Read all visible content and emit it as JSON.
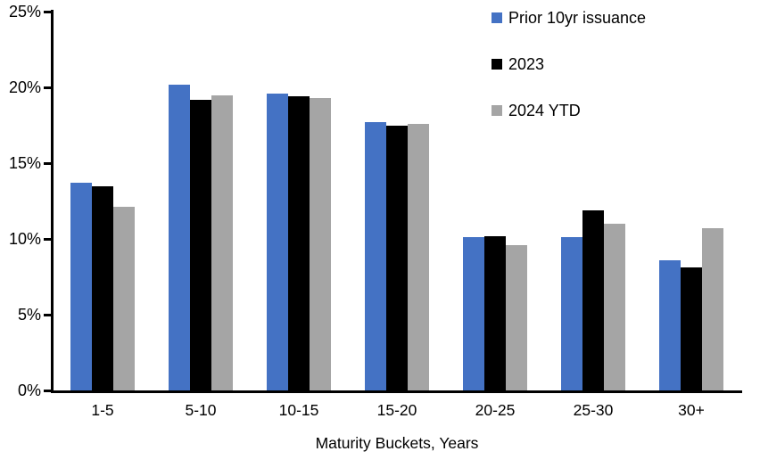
{
  "chart_data": {
    "type": "bar",
    "title": "",
    "xlabel": "Maturity Buckets, Years",
    "ylabel": "",
    "ylim": [
      0,
      25
    ],
    "y_ticks": [
      0,
      5,
      10,
      15,
      20,
      25
    ],
    "y_tick_labels": [
      "0%",
      "5%",
      "10%",
      "15%",
      "20%",
      "25%"
    ],
    "categories": [
      "1-5",
      "5-10",
      "10-15",
      "15-20",
      "20-25",
      "25-30",
      "30+"
    ],
    "series": [
      {
        "name": "Prior 10yr issuance",
        "color": "#4472C4",
        "values": [
          13.7,
          20.2,
          19.6,
          17.7,
          10.1,
          10.1,
          8.6
        ]
      },
      {
        "name": "2023",
        "color": "#000000",
        "values": [
          13.5,
          19.2,
          19.4,
          17.5,
          10.2,
          11.9,
          8.1
        ]
      },
      {
        "name": "2024 YTD",
        "color": "#A5A5A5",
        "values": [
          12.1,
          19.5,
          19.3,
          17.6,
          9.6,
          11.0,
          10.7
        ]
      }
    ],
    "legend_position": "top-right",
    "grid": false,
    "axis_color": "#000000",
    "background_color": "#FFFFFF"
  }
}
